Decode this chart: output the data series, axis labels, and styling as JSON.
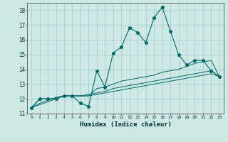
{
  "xlabel": "Humidex (Indice chaleur)",
  "x": [
    0,
    1,
    2,
    3,
    4,
    5,
    6,
    7,
    8,
    9,
    10,
    11,
    12,
    13,
    14,
    15,
    16,
    17,
    18,
    19,
    20,
    21,
    22,
    23
  ],
  "y_main": [
    11.4,
    12.0,
    12.0,
    12.0,
    12.2,
    12.2,
    11.7,
    11.5,
    13.9,
    12.8,
    15.1,
    15.5,
    16.8,
    16.5,
    15.8,
    17.5,
    18.2,
    16.6,
    15.0,
    14.3,
    14.6,
    14.6,
    13.9,
    13.5
  ],
  "y_line2": [
    11.4,
    12.0,
    12.0,
    12.0,
    12.2,
    12.2,
    12.2,
    12.2,
    12.7,
    12.8,
    13.0,
    13.2,
    13.3,
    13.4,
    13.5,
    13.6,
    13.8,
    13.9,
    14.0,
    14.2,
    14.4,
    14.5,
    14.6,
    13.5
  ],
  "y_line3": [
    11.4,
    11.7,
    11.9,
    12.1,
    12.2,
    12.2,
    12.2,
    12.3,
    12.4,
    12.5,
    12.7,
    12.8,
    12.9,
    13.0,
    13.1,
    13.2,
    13.3,
    13.4,
    13.5,
    13.6,
    13.7,
    13.8,
    13.9,
    13.5
  ],
  "y_line4": [
    11.4,
    11.6,
    11.8,
    12.0,
    12.2,
    12.2,
    12.2,
    12.2,
    12.3,
    12.4,
    12.5,
    12.6,
    12.7,
    12.8,
    12.9,
    13.0,
    13.1,
    13.2,
    13.3,
    13.4,
    13.5,
    13.6,
    13.7,
    13.5
  ],
  "ylim": [
    11,
    18.5
  ],
  "xlim": [
    -0.5,
    23.5
  ],
  "bg_color": "#cde8e5",
  "grid_color": "#aacfcc",
  "line_color": "#006868",
  "markersize": 3.5
}
